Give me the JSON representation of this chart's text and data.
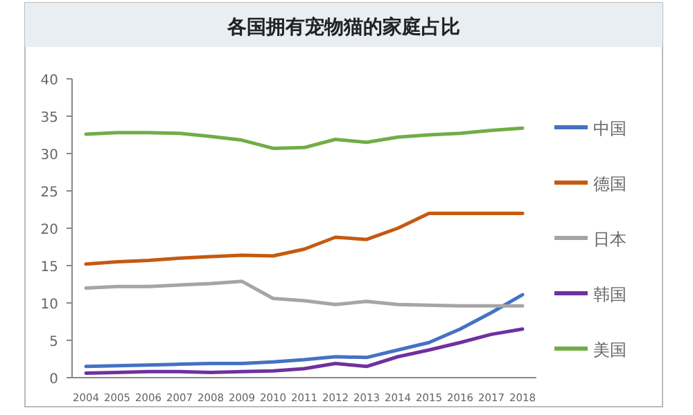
{
  "chart_data": {
    "type": "line",
    "title": "各国拥有宠物猫的家庭占比",
    "categories": [
      "2004",
      "2005",
      "2006",
      "2007",
      "2008",
      "2009",
      "2010",
      "2011",
      "2012",
      "2013",
      "2014",
      "2015",
      "2016",
      "2017",
      "2018"
    ],
    "series": [
      {
        "name": "中国",
        "color": "#4472c4",
        "values": [
          1.5,
          1.6,
          1.7,
          1.8,
          1.9,
          1.9,
          2.1,
          2.4,
          2.8,
          2.7,
          3.7,
          4.7,
          6.5,
          8.7,
          11.1
        ]
      },
      {
        "name": "德国",
        "color": "#c55a11",
        "values": [
          15.2,
          15.5,
          15.7,
          16.0,
          16.2,
          16.4,
          16.3,
          17.2,
          18.8,
          18.5,
          20.0,
          22.0,
          22.0,
          22.0,
          22.0
        ]
      },
      {
        "name": "日本",
        "color": "#a5a5a5",
        "values": [
          12.0,
          12.2,
          12.2,
          12.4,
          12.6,
          12.9,
          10.6,
          10.3,
          9.8,
          10.2,
          9.8,
          9.7,
          9.6,
          9.6,
          9.6
        ]
      },
      {
        "name": "韩国",
        "color": "#7030a0",
        "values": [
          0.6,
          0.7,
          0.8,
          0.8,
          0.7,
          0.8,
          0.9,
          1.2,
          1.9,
          1.5,
          2.8,
          3.7,
          4.7,
          5.8,
          6.5
        ]
      },
      {
        "name": "美国",
        "color": "#70ad47",
        "values": [
          32.6,
          32.8,
          32.8,
          32.7,
          32.3,
          31.8,
          30.7,
          30.8,
          31.9,
          31.5,
          32.2,
          32.5,
          32.7,
          33.1,
          33.4
        ]
      }
    ],
    "ylim": [
      0,
      40
    ],
    "yticks": [
      0,
      5,
      10,
      15,
      20,
      25,
      30,
      35,
      40
    ],
    "grid": false,
    "legend": "right",
    "marker": "none",
    "line_style": "solid"
  }
}
